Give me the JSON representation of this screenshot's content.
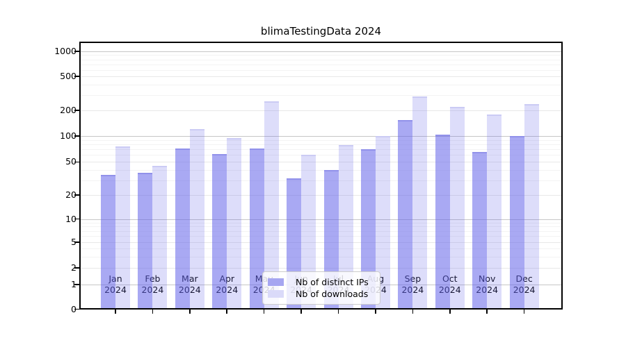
{
  "title": "blimaTestingData 2024",
  "chart_data": {
    "type": "bar",
    "title": "blimaTestingData 2024",
    "categories": [
      "Jan",
      "Feb",
      "Mar",
      "Apr",
      "May",
      "Jun",
      "Jul",
      "Aug",
      "Sep",
      "Oct",
      "Nov",
      "Dec"
    ],
    "year_label": "2024",
    "series": [
      {
        "name": "Nb of distinct IPs",
        "color": "rgba(99,99,233,0.55)",
        "color_solid": "#a6a6f1",
        "values": [
          35,
          37,
          72,
          62,
          71,
          32,
          40,
          70,
          155,
          104,
          65,
          100
        ]
      },
      {
        "name": "Nb of downloads",
        "color": "rgba(99,99,233,0.22)",
        "color_solid": "#dadaf9",
        "values": [
          75,
          45,
          120,
          95,
          255,
          61,
          78,
          100,
          290,
          220,
          180,
          238
        ]
      }
    ],
    "xlabel": "",
    "ylabel": "",
    "y_scale": "log-decades with linear 0-1 segment",
    "ylim": [
      0,
      1400
    ],
    "y_ticks": [
      0,
      1,
      2,
      5,
      10,
      20,
      50,
      100,
      200,
      500,
      1000
    ],
    "y_mid_ticks": [
      2,
      5,
      20,
      50,
      200,
      500
    ],
    "y_major_gridlines": [
      1,
      10,
      100,
      1000
    ],
    "y_minor_gridlines": [
      3,
      4,
      6,
      7,
      8,
      9,
      30,
      40,
      60,
      70,
      80,
      90,
      300,
      400,
      600,
      700,
      800,
      900
    ],
    "grid": true,
    "legend_position": "lower center"
  },
  "colors": {
    "bar_ips": "rgba(99,99,233,0.55)",
    "bar_downloads": "rgba(99,99,233,0.22)",
    "gridline_major": "#c6c6c6",
    "gridline_minor": "#f3f3f3",
    "spine": "#000000",
    "background": "#ffffff"
  }
}
